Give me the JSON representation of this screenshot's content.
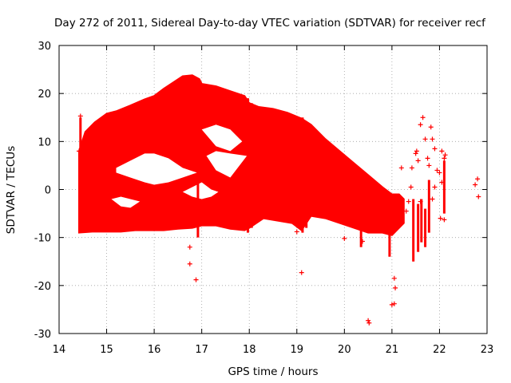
{
  "chart_data": {
    "type": "scatter",
    "title": "Day 272 of 2011, Sidereal Day-to-day VTEC variation (SDTVAR) for receiver recf",
    "xlabel": "GPS time / hours",
    "ylabel": "SDTVAR / TECUs",
    "xlim": [
      14,
      23
    ],
    "ylim": [
      -30,
      30
    ],
    "xticks": [
      14,
      15,
      16,
      17,
      18,
      19,
      20,
      21,
      22,
      23
    ],
    "yticks": [
      -30,
      -20,
      -10,
      0,
      10,
      20,
      30
    ],
    "grid": true,
    "marker": "+",
    "color": "#ff0000",
    "envelope": {
      "description": "dense band of overlapping points",
      "upper": [
        [
          14.42,
          8
        ],
        [
          14.55,
          12
        ],
        [
          14.75,
          14
        ],
        [
          15.0,
          15.8
        ],
        [
          15.2,
          16.3
        ],
        [
          15.5,
          17.5
        ],
        [
          15.8,
          18.8
        ],
        [
          16.0,
          19.5
        ],
        [
          16.2,
          21.0
        ],
        [
          16.4,
          22.3
        ],
        [
          16.6,
          23.6
        ],
        [
          16.8,
          23.8
        ],
        [
          16.95,
          23.0
        ],
        [
          17.0,
          22.0
        ],
        [
          17.3,
          21.5
        ],
        [
          17.6,
          20.5
        ],
        [
          17.9,
          19.5
        ],
        [
          18.0,
          18.0
        ],
        [
          18.2,
          17.2
        ],
        [
          18.5,
          16.8
        ],
        [
          18.8,
          16.0
        ],
        [
          19.1,
          14.8
        ],
        [
          19.3,
          13.5
        ],
        [
          19.6,
          10.5
        ],
        [
          19.9,
          8.0
        ],
        [
          20.2,
          5.5
        ],
        [
          20.5,
          3.0
        ],
        [
          20.8,
          0.5
        ],
        [
          21.0,
          -1.0
        ],
        [
          21.15,
          -1.0
        ],
        [
          21.25,
          -2.0
        ]
      ],
      "lower": [
        [
          14.42,
          -9
        ],
        [
          14.7,
          -8.8
        ],
        [
          15.0,
          -8.8
        ],
        [
          15.3,
          -8.8
        ],
        [
          15.6,
          -8.5
        ],
        [
          15.9,
          -8.5
        ],
        [
          16.2,
          -8.5
        ],
        [
          16.5,
          -8.2
        ],
        [
          16.8,
          -8.0
        ],
        [
          17.0,
          -7.5
        ],
        [
          17.3,
          -7.5
        ],
        [
          17.6,
          -8.2
        ],
        [
          17.9,
          -8.5
        ],
        [
          18.0,
          -8.0
        ],
        [
          18.3,
          -6.0
        ],
        [
          18.6,
          -6.5
        ],
        [
          18.9,
          -7.0
        ],
        [
          19.1,
          -8.5
        ],
        [
          19.3,
          -5.5
        ],
        [
          19.6,
          -6.0
        ],
        [
          19.9,
          -7.0
        ],
        [
          20.2,
          -8.0
        ],
        [
          20.5,
          -9.0
        ],
        [
          20.8,
          -9.0
        ],
        [
          21.0,
          -9.5
        ],
        [
          21.25,
          -7.0
        ]
      ]
    },
    "holes": [
      {
        "upper": [
          [
            15.2,
            4.5
          ],
          [
            15.5,
            6.0
          ],
          [
            15.8,
            7.5
          ],
          [
            16.0,
            7.5
          ],
          [
            16.3,
            6.5
          ],
          [
            16.6,
            4.5
          ],
          [
            16.9,
            3.5
          ]
        ],
        "lower": [
          [
            15.2,
            3.5
          ],
          [
            15.5,
            2.5
          ],
          [
            15.8,
            1.5
          ],
          [
            16.0,
            1.0
          ],
          [
            16.3,
            1.5
          ],
          [
            16.6,
            2.5
          ],
          [
            16.9,
            3.5
          ]
        ]
      },
      {
        "upper": [
          [
            17.0,
            12.5
          ],
          [
            17.3,
            13.5
          ],
          [
            17.6,
            12.5
          ],
          [
            17.85,
            10.0
          ]
        ],
        "lower": [
          [
            17.0,
            12.5
          ],
          [
            17.3,
            9.0
          ],
          [
            17.6,
            8.0
          ],
          [
            17.85,
            10.0
          ]
        ]
      },
      {
        "upper": [
          [
            17.1,
            7.0
          ],
          [
            17.3,
            8.0
          ],
          [
            17.6,
            7.5
          ],
          [
            17.95,
            7.0
          ]
        ],
        "lower": [
          [
            17.1,
            7.0
          ],
          [
            17.3,
            4.0
          ],
          [
            17.6,
            2.5
          ],
          [
            17.95,
            7.0
          ]
        ]
      },
      {
        "upper": [
          [
            15.1,
            -2.0
          ],
          [
            15.3,
            -1.5
          ],
          [
            15.5,
            -2.0
          ],
          [
            15.7,
            -2.5
          ]
        ],
        "lower": [
          [
            15.1,
            -2.0
          ],
          [
            15.3,
            -3.5
          ],
          [
            15.5,
            -3.8
          ],
          [
            15.7,
            -2.5
          ]
        ]
      },
      {
        "upper": [
          [
            16.6,
            -0.5
          ],
          [
            16.8,
            0.5
          ],
          [
            17.0,
            1.5
          ],
          [
            17.2,
            0.0
          ],
          [
            17.35,
            -0.5
          ]
        ],
        "lower": [
          [
            16.6,
            -0.5
          ],
          [
            16.8,
            -1.5
          ],
          [
            17.0,
            -2.0
          ],
          [
            17.2,
            -1.5
          ],
          [
            17.35,
            -0.5
          ]
        ]
      }
    ],
    "vertical_streaks": [
      {
        "x": 14.45,
        "y": [
          -9,
          15
        ]
      },
      {
        "x": 16.92,
        "y": [
          -10,
          23
        ]
      },
      {
        "x": 17.97,
        "y": [
          -9,
          19
        ]
      },
      {
        "x": 18.05,
        "y": [
          -8,
          18
        ]
      },
      {
        "x": 19.12,
        "y": [
          -9,
          15
        ]
      },
      {
        "x": 19.2,
        "y": [
          -8,
          14
        ]
      },
      {
        "x": 20.35,
        "y": [
          -12,
          -7
        ]
      },
      {
        "x": 20.95,
        "y": [
          -14,
          -8
        ]
      },
      {
        "x": 21.45,
        "y": [
          -15,
          -2
        ]
      },
      {
        "x": 21.55,
        "y": [
          -13,
          -3
        ]
      },
      {
        "x": 21.62,
        "y": [
          -11,
          -2
        ]
      },
      {
        "x": 21.7,
        "y": [
          -12,
          -4
        ]
      },
      {
        "x": 21.78,
        "y": [
          -9,
          2
        ]
      },
      {
        "x": 22.1,
        "y": [
          -5,
          6
        ]
      }
    ],
    "outliers": [
      [
        14.42,
        8.0
      ],
      [
        14.45,
        15.3
      ],
      [
        14.5,
        5.5
      ],
      [
        16.75,
        -12.0
      ],
      [
        16.75,
        -15.5
      ],
      [
        16.88,
        -18.8
      ],
      [
        19.1,
        -17.3
      ],
      [
        20.5,
        -27.3
      ],
      [
        20.52,
        -27.8
      ],
      [
        21.05,
        -18.5
      ],
      [
        21.07,
        -20.5
      ],
      [
        21.0,
        -24.0
      ],
      [
        21.05,
        -23.8
      ],
      [
        21.2,
        4.5
      ],
      [
        21.35,
        -2.5
      ],
      [
        21.4,
        0.5
      ],
      [
        21.42,
        4.5
      ],
      [
        21.5,
        7.5
      ],
      [
        21.52,
        8.0
      ],
      [
        21.55,
        6.0
      ],
      [
        21.6,
        13.5
      ],
      [
        21.65,
        15.0
      ],
      [
        21.7,
        10.5
      ],
      [
        21.75,
        6.5
      ],
      [
        21.78,
        5.0
      ],
      [
        21.82,
        13.0
      ],
      [
        21.85,
        10.5
      ],
      [
        21.9,
        8.5
      ],
      [
        21.95,
        4.0
      ],
      [
        22.0,
        3.5
      ],
      [
        22.05,
        1.5
      ],
      [
        22.05,
        8.0
      ],
      [
        22.1,
        6.5
      ],
      [
        22.12,
        7.2
      ],
      [
        22.02,
        -6.0
      ],
      [
        22.1,
        -6.3
      ],
      [
        21.9,
        0.5
      ],
      [
        21.85,
        -2.0
      ],
      [
        21.6,
        -2.5
      ],
      [
        21.3,
        -4.5
      ],
      [
        22.75,
        1.0
      ],
      [
        22.8,
        2.2
      ],
      [
        22.82,
        -1.5
      ],
      [
        19.0,
        -8.8
      ],
      [
        20.0,
        -10.2
      ],
      [
        20.38,
        -10.8
      ]
    ]
  }
}
